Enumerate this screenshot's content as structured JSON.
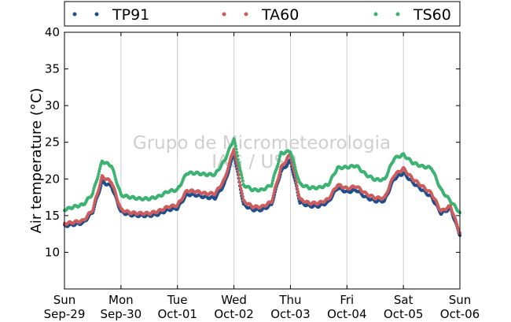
{
  "chart_data": {
    "type": "scatter",
    "ylabel": "Air temperature (°C)",
    "ylim": [
      5,
      40
    ],
    "yticks": [
      10,
      15,
      20,
      25,
      30,
      35,
      40
    ],
    "xlim": [
      "2019-09-29",
      "2019-10-06"
    ],
    "xticks": [
      {
        "date": "2019-09-29",
        "day": "Sun",
        "label": "Sep-29"
      },
      {
        "date": "2019-09-30",
        "day": "Mon",
        "label": "Sep-30"
      },
      {
        "date": "2019-10-01",
        "day": "Tue",
        "label": "Oct-01"
      },
      {
        "date": "2019-10-02",
        "day": "Wed",
        "label": "Oct-02"
      },
      {
        "date": "2019-10-03",
        "day": "Thu",
        "label": "Oct-03"
      },
      {
        "date": "2019-10-04",
        "day": "Fri",
        "label": "Oct-04"
      },
      {
        "date": "2019-10-05",
        "day": "Sat",
        "label": "Oct-05"
      },
      {
        "date": "2019-10-06",
        "day": "Sun",
        "label": "Oct-06"
      }
    ],
    "grid": "vertical",
    "legend_position": "top",
    "watermark": [
      "Grupo de Micrometeorologia",
      "IAG / USP"
    ],
    "series": [
      {
        "name": "TP91",
        "color": "#1f4e8c",
        "x": [
          "2019-09-29T00:00",
          "2019-09-29T04:00",
          "2019-09-29T08:00",
          "2019-09-29T12:00",
          "2019-09-29T16:00",
          "2019-09-29T20:00",
          "2019-09-30T00:00",
          "2019-09-30T04:00",
          "2019-09-30T08:00",
          "2019-09-30T12:00",
          "2019-09-30T16:00",
          "2019-09-30T20:00",
          "2019-10-01T00:00",
          "2019-10-01T04:00",
          "2019-10-01T08:00",
          "2019-10-01T12:00",
          "2019-10-01T16:00",
          "2019-10-01T20:00",
          "2019-10-02T00:00",
          "2019-10-02T04:00",
          "2019-10-02T08:00",
          "2019-10-02T12:00",
          "2019-10-02T16:00",
          "2019-10-02T20:00",
          "2019-10-03T00:00",
          "2019-10-03T04:00",
          "2019-10-03T08:00",
          "2019-10-03T12:00",
          "2019-10-03T16:00",
          "2019-10-03T20:00",
          "2019-10-04T00:00",
          "2019-10-04T04:00",
          "2019-10-04T08:00",
          "2019-10-04T12:00",
          "2019-10-04T16:00",
          "2019-10-04T20:00",
          "2019-10-05T00:00",
          "2019-10-05T04:00",
          "2019-10-05T08:00",
          "2019-10-05T12:00",
          "2019-10-05T16:00",
          "2019-10-05T20:00",
          "2019-10-06T00:00"
        ],
        "y": [
          13.6,
          13.8,
          14.0,
          15.5,
          19.6,
          19.0,
          15.5,
          15.1,
          15.0,
          15.0,
          15.2,
          15.8,
          16.0,
          17.9,
          17.8,
          17.5,
          17.4,
          19.3,
          23.5,
          16.5,
          15.8,
          15.8,
          16.5,
          21.0,
          22.5,
          16.8,
          16.3,
          16.3,
          16.8,
          18.8,
          18.2,
          18.5,
          17.5,
          17.0,
          17.0,
          20.0,
          20.8,
          19.5,
          18.5,
          17.5,
          15.3,
          16.0,
          12.3
        ]
      },
      {
        "name": "TA60",
        "color": "#cd5c5c",
        "x": [
          "2019-09-29T00:00",
          "2019-09-29T04:00",
          "2019-09-29T08:00",
          "2019-09-29T12:00",
          "2019-09-29T16:00",
          "2019-09-29T20:00",
          "2019-09-30T00:00",
          "2019-09-30T04:00",
          "2019-09-30T08:00",
          "2019-09-30T12:00",
          "2019-09-30T16:00",
          "2019-09-30T20:00",
          "2019-10-01T00:00",
          "2019-10-01T04:00",
          "2019-10-01T08:00",
          "2019-10-01T12:00",
          "2019-10-01T16:00",
          "2019-10-01T20:00",
          "2019-10-02T00:00",
          "2019-10-02T04:00",
          "2019-10-02T08:00",
          "2019-10-02T12:00",
          "2019-10-02T16:00",
          "2019-10-02T20:00",
          "2019-10-03T00:00",
          "2019-10-03T04:00",
          "2019-10-03T08:00",
          "2019-10-03T12:00",
          "2019-10-03T16:00",
          "2019-10-03T20:00",
          "2019-10-04T00:00",
          "2019-10-04T04:00",
          "2019-10-04T08:00",
          "2019-10-04T12:00",
          "2019-10-04T16:00",
          "2019-10-04T20:00",
          "2019-10-05T00:00",
          "2019-10-05T04:00",
          "2019-10-05T08:00",
          "2019-10-05T12:00",
          "2019-10-05T16:00",
          "2019-10-05T20:00",
          "2019-10-06T00:00"
        ],
        "y": [
          13.9,
          14.1,
          14.3,
          15.8,
          20.3,
          19.6,
          15.8,
          15.4,
          15.3,
          15.3,
          15.6,
          16.2,
          16.4,
          18.4,
          18.3,
          18.0,
          18.0,
          19.9,
          24.2,
          17.0,
          16.2,
          16.2,
          16.9,
          21.5,
          23.4,
          17.2,
          16.7,
          16.7,
          17.2,
          19.2,
          18.7,
          19.0,
          18.0,
          17.4,
          17.4,
          20.5,
          21.4,
          20.0,
          19.0,
          18.0,
          15.6,
          16.3,
          12.6
        ]
      },
      {
        "name": "TS60",
        "color": "#3cb371",
        "x": [
          "2019-09-29T00:00",
          "2019-09-29T04:00",
          "2019-09-29T08:00",
          "2019-09-29T12:00",
          "2019-09-29T16:00",
          "2019-09-29T20:00",
          "2019-09-30T00:00",
          "2019-09-30T04:00",
          "2019-09-30T08:00",
          "2019-09-30T12:00",
          "2019-09-30T16:00",
          "2019-09-30T20:00",
          "2019-10-01T00:00",
          "2019-10-01T04:00",
          "2019-10-01T08:00",
          "2019-10-01T12:00",
          "2019-10-01T16:00",
          "2019-10-01T20:00",
          "2019-10-02T00:00",
          "2019-10-02T04:00",
          "2019-10-02T08:00",
          "2019-10-02T12:00",
          "2019-10-02T16:00",
          "2019-10-02T20:00",
          "2019-10-03T00:00",
          "2019-10-03T04:00",
          "2019-10-03T08:00",
          "2019-10-03T12:00",
          "2019-10-03T16:00",
          "2019-10-03T20:00",
          "2019-10-04T00:00",
          "2019-10-04T04:00",
          "2019-10-04T08:00",
          "2019-10-04T12:00",
          "2019-10-04T16:00",
          "2019-10-04T20:00",
          "2019-10-05T00:00",
          "2019-10-05T04:00",
          "2019-10-05T08:00",
          "2019-10-05T12:00",
          "2019-10-05T16:00",
          "2019-10-05T20:00",
          "2019-10-06T00:00"
        ],
        "y": [
          15.8,
          16.2,
          16.5,
          18.0,
          22.4,
          21.8,
          17.8,
          17.5,
          17.3,
          17.3,
          17.6,
          18.3,
          18.5,
          20.8,
          20.8,
          20.6,
          20.6,
          22.5,
          25.5,
          19.2,
          18.5,
          18.5,
          19.2,
          23.5,
          23.8,
          19.3,
          18.8,
          18.8,
          19.2,
          21.5,
          21.6,
          21.8,
          20.6,
          19.9,
          19.9,
          22.8,
          23.3,
          22.2,
          21.7,
          21.5,
          18.5,
          17.0,
          15.4
        ]
      }
    ]
  }
}
